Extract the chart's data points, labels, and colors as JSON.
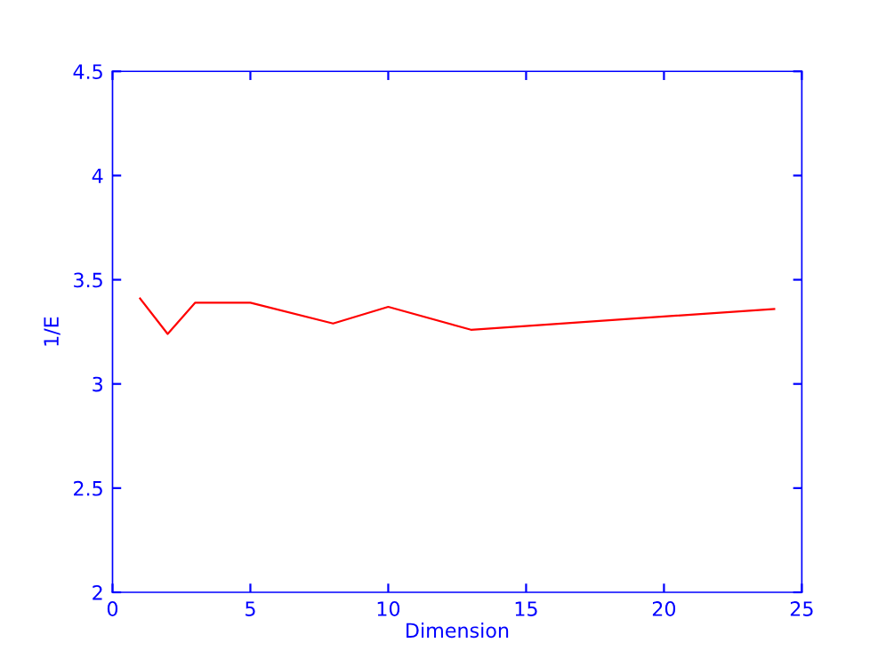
{
  "chart_data": {
    "type": "line",
    "xlabel": "Dimension",
    "ylabel": "1/E",
    "x": [
      1,
      2,
      3,
      5,
      8,
      10,
      13,
      24
    ],
    "series": [
      {
        "color": "#ff0000",
        "values": [
          3.41,
          3.24,
          3.39,
          3.39,
          3.29,
          3.37,
          3.26,
          3.36
        ]
      }
    ],
    "xlim": [
      0,
      25
    ],
    "xticks": [
      0,
      5,
      10,
      15,
      20,
      25
    ],
    "ylim": [
      2,
      4.5
    ],
    "yticks": [
      2,
      {
        "value": 2.5,
        "label": "2.5"
      },
      3,
      {
        "value": 3.5,
        "label": "3.5"
      },
      4,
      {
        "value": 4.5,
        "label": "4.5"
      }
    ],
    "grid": false,
    "line_style": "solid"
  }
}
